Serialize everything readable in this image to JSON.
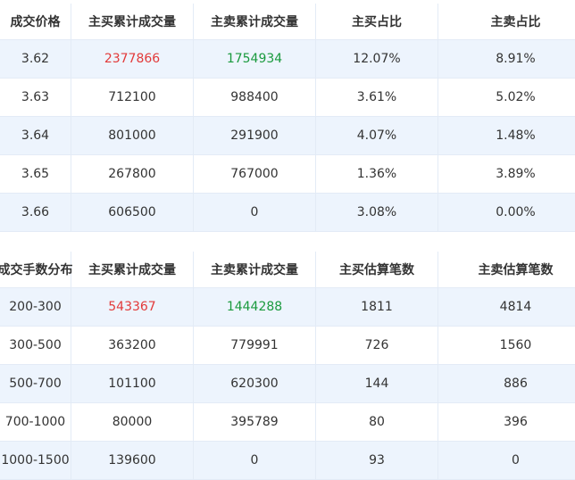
{
  "colors": {
    "red": "#e23a3a",
    "green": "#1a9a3e",
    "row_alt": "#edf4fd"
  },
  "price_table": {
    "headers": [
      "成交价格",
      "主买累计成交量",
      "主卖累计成交量",
      "主买占比",
      "主卖占比"
    ],
    "rows": [
      [
        "3.62",
        "2377866",
        "1754934",
        "12.07%",
        "8.91%"
      ],
      [
        "3.63",
        "712100",
        "988400",
        "3.61%",
        "5.02%"
      ],
      [
        "3.64",
        "801000",
        "291900",
        "4.07%",
        "1.48%"
      ],
      [
        "3.65",
        "267800",
        "767000",
        "1.36%",
        "3.89%"
      ],
      [
        "3.66",
        "606500",
        "0",
        "3.08%",
        "0.00%"
      ]
    ]
  },
  "volume_table": {
    "headers": [
      "成交手数分布",
      "主买累计成交量",
      "主卖累计成交量",
      "主买估算笔数",
      "主卖估算笔数"
    ],
    "rows": [
      [
        "200-300",
        "543367",
        "1444288",
        "1811",
        "4814"
      ],
      [
        "300-500",
        "363200",
        "779991",
        "726",
        "1560"
      ],
      [
        "500-700",
        "101100",
        "620300",
        "144",
        "886"
      ],
      [
        "700-1000",
        "80000",
        "395789",
        "80",
        "396"
      ],
      [
        "1000-1500",
        "139600",
        "0",
        "93",
        "0"
      ]
    ]
  }
}
